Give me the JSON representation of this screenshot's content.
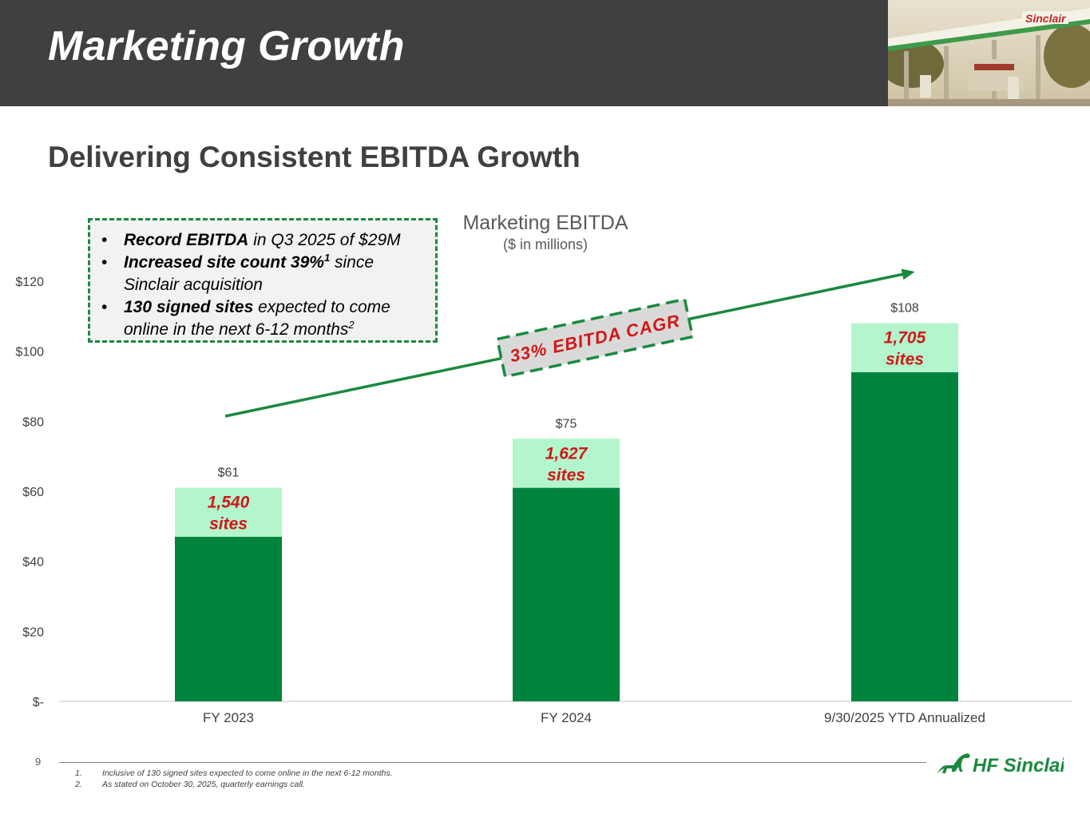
{
  "header": {
    "title": "Marketing Growth",
    "photo_sign": "Sinclair"
  },
  "subtitle": "Delivering Consistent EBITDA Growth",
  "callout": {
    "items": [
      {
        "bold": "Record EBITDA",
        "rest": " in Q3 2025 of $29M",
        "sup": ""
      },
      {
        "bold": "Increased site count 39%",
        "sup": "1",
        "rest": " since Sinclair acquisition"
      },
      {
        "bold": "130 signed sites",
        "rest": " expected to come online in the next 6-12 months",
        "sup": "2"
      }
    ]
  },
  "chart_data": {
    "type": "bar",
    "title": "Marketing EBITDA",
    "subtitle": "($ in millions)",
    "categories": [
      "FY 2023",
      "FY 2024",
      "9/30/2025 YTD Annualized"
    ],
    "values": [
      61,
      75,
      108
    ],
    "value_labels": [
      "$61",
      "$75",
      "$108"
    ],
    "site_counts": [
      "1,540",
      "1,627",
      "1,705"
    ],
    "site_suffix": "sites",
    "label_band_height": 14,
    "ylim": [
      0,
      120
    ],
    "yticks": [
      0,
      20,
      40,
      60,
      80,
      100,
      120
    ],
    "ytick_labels": [
      "$-",
      "$20",
      "$40",
      "$60",
      "$80",
      "$100",
      "$120"
    ],
    "annotation": "33% EBITDA CAGR",
    "colors": {
      "bar": "#00843d",
      "band": "#b3f5cc",
      "sites_text": "#d01818",
      "arrow": "#1a8a3e",
      "axis": "#d9d9d9",
      "label": "#404040"
    }
  },
  "footer": {
    "page_number": "9",
    "footnotes": [
      {
        "num": "1.",
        "text": "Inclusive of 130 signed sites expected to come online in the next 6-12 months."
      },
      {
        "num": "2.",
        "text": "As stated on October 30, 2025, quarterly earnings call."
      }
    ],
    "brand": "HF Sinclair"
  }
}
